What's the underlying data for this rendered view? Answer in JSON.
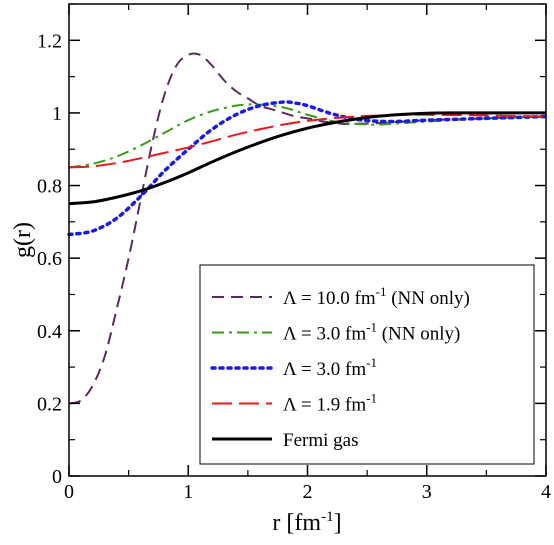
{
  "chart_data": {
    "type": "line",
    "xlabel": "r [fm",
    "xlabel_sup": "-1",
    "xlabel_end": "]",
    "ylabel": "g(r)",
    "xlim": [
      0,
      4
    ],
    "ylim": [
      0,
      1.3
    ],
    "x_ticks": [
      "0",
      "1",
      "2",
      "3",
      "4"
    ],
    "y_ticks": [
      "0",
      "0.2",
      "0.4",
      "0.6",
      "0.8",
      "1",
      "1.2"
    ],
    "grid": false,
    "legend_position": "bottom-right",
    "series": [
      {
        "name": "Λ = 10.0 fm",
        "name_sup": "-1",
        "name_suffix": " (NN only)",
        "color": "#5a2a5e",
        "dash": "dashed",
        "points": [
          [
            0,
            0.2
          ],
          [
            0.1,
            0.208
          ],
          [
            0.2,
            0.25
          ],
          [
            0.3,
            0.33
          ],
          [
            0.4,
            0.46
          ],
          [
            0.5,
            0.6
          ],
          [
            0.6,
            0.76
          ],
          [
            0.7,
            0.92
          ],
          [
            0.8,
            1.05
          ],
          [
            0.9,
            1.13
          ],
          [
            1.0,
            1.16
          ],
          [
            1.1,
            1.16
          ],
          [
            1.2,
            1.13
          ],
          [
            1.3,
            1.09
          ],
          [
            1.4,
            1.06
          ],
          [
            1.5,
            1.04
          ],
          [
            1.6,
            1.02
          ],
          [
            1.7,
            1.01
          ],
          [
            1.8,
            1.0
          ],
          [
            1.9,
            0.99
          ],
          [
            2.0,
            0.985
          ],
          [
            2.1,
            0.978
          ],
          [
            2.2,
            0.973
          ],
          [
            2.3,
            0.97
          ],
          [
            2.4,
            0.97
          ],
          [
            2.6,
            0.972
          ],
          [
            2.8,
            0.976
          ],
          [
            3.0,
            0.98
          ],
          [
            3.2,
            0.982
          ],
          [
            3.5,
            0.985
          ],
          [
            4.0,
            0.99
          ]
        ]
      },
      {
        "name": "Λ = 3.0 fm",
        "name_sup": "-1",
        "name_suffix": " (NN only)",
        "color": "#3a9a1a",
        "dash": "dashdot",
        "points": [
          [
            0,
            0.85
          ],
          [
            0.2,
            0.86
          ],
          [
            0.4,
            0.88
          ],
          [
            0.6,
            0.91
          ],
          [
            0.8,
            0.945
          ],
          [
            1.0,
            0.98
          ],
          [
            1.2,
            1.005
          ],
          [
            1.4,
            1.02
          ],
          [
            1.5,
            1.023
          ],
          [
            1.6,
            1.023
          ],
          [
            1.8,
            1.015
          ],
          [
            2.0,
            0.995
          ],
          [
            2.2,
            0.978
          ],
          [
            2.4,
            0.97
          ],
          [
            2.6,
            0.968
          ],
          [
            2.8,
            0.972
          ],
          [
            3.0,
            0.976
          ],
          [
            3.5,
            0.985
          ],
          [
            4.0,
            0.99
          ]
        ]
      },
      {
        "name": "Λ = 3.0 fm",
        "name_sup": "-1",
        "name_suffix": "",
        "color": "#1a1ae6",
        "dash": "dotted",
        "points": [
          [
            0,
            0.665
          ],
          [
            0.2,
            0.675
          ],
          [
            0.4,
            0.71
          ],
          [
            0.6,
            0.77
          ],
          [
            0.8,
            0.84
          ],
          [
            1.0,
            0.9
          ],
          [
            1.2,
            0.955
          ],
          [
            1.4,
            0.995
          ],
          [
            1.6,
            1.02
          ],
          [
            1.8,
            1.03
          ],
          [
            1.9,
            1.027
          ],
          [
            2.0,
            1.02
          ],
          [
            2.2,
            0.998
          ],
          [
            2.4,
            0.983
          ],
          [
            2.6,
            0.977
          ],
          [
            2.8,
            0.977
          ],
          [
            3.0,
            0.98
          ],
          [
            3.5,
            0.985
          ],
          [
            4.0,
            0.99
          ]
        ]
      },
      {
        "name": "Λ = 1.9 fm",
        "name_sup": "-1",
        "name_suffix": "",
        "color": "#e61a1a",
        "dash": "longdash",
        "points": [
          [
            0,
            0.85
          ],
          [
            0.2,
            0.853
          ],
          [
            0.4,
            0.862
          ],
          [
            0.6,
            0.875
          ],
          [
            0.8,
            0.89
          ],
          [
            1.0,
            0.905
          ],
          [
            1.2,
            0.922
          ],
          [
            1.4,
            0.94
          ],
          [
            1.6,
            0.955
          ],
          [
            1.8,
            0.968
          ],
          [
            2.0,
            0.978
          ],
          [
            2.2,
            0.985
          ],
          [
            2.4,
            0.99
          ],
          [
            2.6,
            0.993
          ],
          [
            2.8,
            0.995
          ],
          [
            3.0,
            0.995
          ],
          [
            3.5,
            0.993
          ],
          [
            4.0,
            0.99
          ]
        ]
      },
      {
        "name": "Fermi gas",
        "name_sup": "",
        "name_suffix": "",
        "color": "#000000",
        "dash": "solid",
        "points": [
          [
            0,
            0.75
          ],
          [
            0.2,
            0.755
          ],
          [
            0.4,
            0.768
          ],
          [
            0.6,
            0.785
          ],
          [
            0.8,
            0.808
          ],
          [
            1.0,
            0.835
          ],
          [
            1.2,
            0.865
          ],
          [
            1.4,
            0.893
          ],
          [
            1.6,
            0.918
          ],
          [
            1.8,
            0.94
          ],
          [
            2.0,
            0.958
          ],
          [
            2.2,
            0.972
          ],
          [
            2.4,
            0.983
          ],
          [
            2.6,
            0.991
          ],
          [
            2.8,
            0.996
          ],
          [
            3.0,
            0.999
          ],
          [
            3.2,
            1.0
          ],
          [
            3.5,
            1.0
          ],
          [
            4.0,
            1.0
          ]
        ]
      }
    ]
  }
}
